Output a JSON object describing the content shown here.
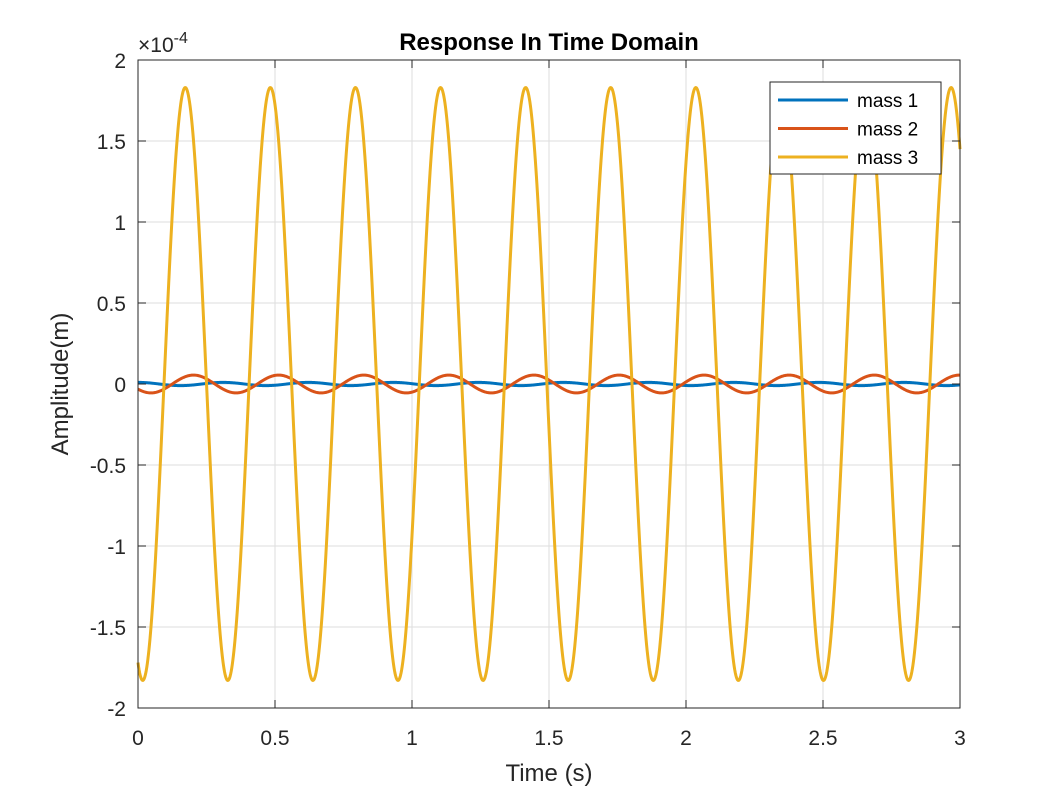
{
  "chart_data": {
    "type": "line",
    "title": "Response In Time Domain",
    "xlabel": "Time (s)",
    "ylabel": "Amplitude(m)",
    "y_exponent_label": "×10",
    "y_exponent": "-4",
    "xlim": [
      0,
      3
    ],
    "ylim": [
      -2,
      2
    ],
    "y_scale_factor": 0.0001,
    "x_ticks": [
      0,
      0.5,
      1,
      1.5,
      2,
      2.5,
      3
    ],
    "x_tick_labels": [
      "0",
      "0.5",
      "1",
      "1.5",
      "2",
      "2.5",
      "3"
    ],
    "y_ticks": [
      -2,
      -1.5,
      -1,
      -0.5,
      0,
      0.5,
      1,
      1.5,
      2
    ],
    "y_tick_labels": [
      "-2",
      "-1.5",
      "-1",
      "-0.5",
      "0",
      "0.5",
      "1",
      "1.5",
      "2"
    ],
    "grid": true,
    "legend_position": "top-right",
    "series": [
      {
        "name": "mass 1",
        "color": "#0072BD",
        "amplitude": 0.01,
        "frequency_hz": 3.22,
        "phase_deg": 90
      },
      {
        "name": "mass 2",
        "color": "#D95319",
        "amplitude": 0.055,
        "frequency_hz": 3.22,
        "phase_deg": 215
      },
      {
        "name": "mass 3",
        "color": "#EDB120",
        "amplitude": 1.83,
        "frequency_hz": 3.22,
        "phase_deg": 250
      }
    ]
  }
}
